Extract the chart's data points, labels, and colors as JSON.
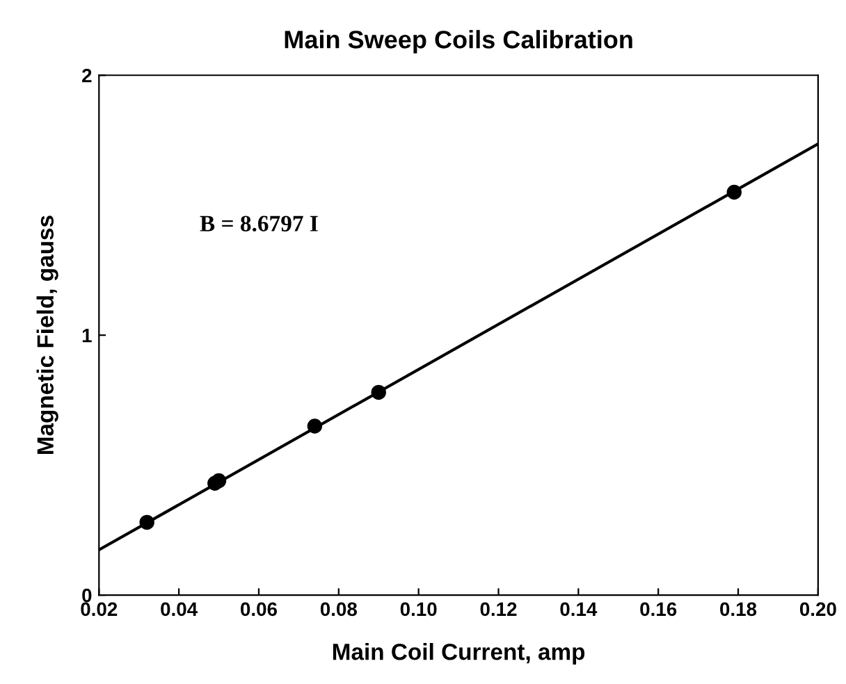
{
  "chart_data": {
    "type": "scatter",
    "title": "Main Sweep Coils Calibration",
    "xlabel": "Main Coil Current, amp",
    "ylabel": "Magnetic Field, gauss",
    "annotations": [
      "B = 8.6797 I"
    ],
    "series": [
      {
        "color": "#000000",
        "marker": "circle",
        "x": [
          0.032,
          0.049,
          0.05,
          0.074,
          0.09,
          0.179
        ],
        "values": [
          0.28,
          0.43,
          0.44,
          0.65,
          0.78,
          1.55
        ]
      },
      {
        "type": "line",
        "color": "#000000",
        "x": [
          0.02,
          0.2
        ],
        "values": [
          0.174,
          1.736
        ]
      }
    ],
    "xlim": [
      0.02,
      0.2
    ],
    "ylim": [
      0,
      2
    ],
    "xticks": [
      {
        "value": 0.02,
        "label": "0.02"
      },
      {
        "value": 0.04,
        "label": "0.04"
      },
      {
        "value": 0.06,
        "label": "0.06"
      },
      {
        "value": 0.08,
        "label": "0.08"
      },
      {
        "value": 0.1,
        "label": "0.10"
      },
      {
        "value": 0.12,
        "label": "0.12"
      },
      {
        "value": 0.14,
        "label": "0.14"
      },
      {
        "value": 0.16,
        "label": "0.16"
      },
      {
        "value": 0.18,
        "label": "0.18"
      },
      {
        "value": 0.2,
        "label": "0.20"
      }
    ],
    "yticks": [
      0,
      1,
      2
    ],
    "grid": false,
    "legend": false
  }
}
